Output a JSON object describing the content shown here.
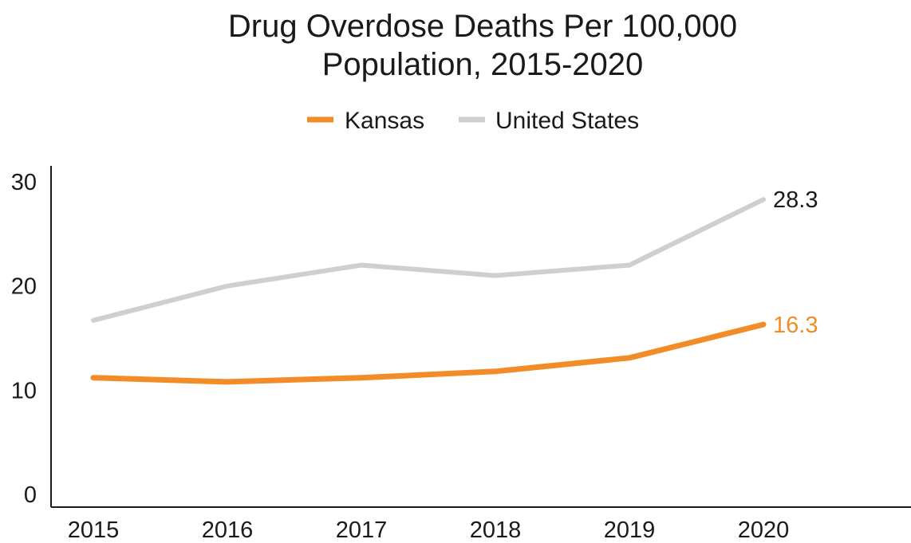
{
  "chart_data": {
    "type": "line",
    "title_lines": [
      "Drug Overdose Deaths Per 100,000",
      "Population, 2015-2020"
    ],
    "xlabel": "",
    "ylabel": "",
    "x": [
      "2015",
      "2016",
      "2017",
      "2018",
      "2019",
      "2020"
    ],
    "ylim": [
      0,
      30
    ],
    "yticks": [
      "0",
      "10",
      "20",
      "30"
    ],
    "grid": false,
    "legend_position": "top-center",
    "series": [
      {
        "name": "Kansas",
        "color": "#F28C28",
        "values": [
          11.2,
          10.8,
          11.2,
          11.8,
          13.1,
          16.3
        ],
        "end_label": "16.3"
      },
      {
        "name": "United States",
        "color": "#CFCFCF",
        "values": [
          16.7,
          20.0,
          22.0,
          21.0,
          22.0,
          28.3
        ],
        "end_label": "28.3"
      }
    ],
    "end_label_colors": [
      "#F28C28",
      "#1a1a1a"
    ]
  }
}
